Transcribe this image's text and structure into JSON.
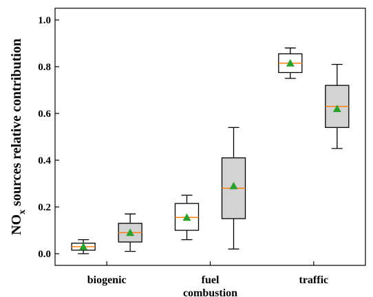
{
  "chart_data": {
    "type": "box",
    "ylabel": {
      "main": "NO",
      "sub": "x",
      "rest": " sources relative contribution"
    },
    "ylim": [
      -0.05,
      1.05
    ],
    "y_ticks": [
      "0.0",
      "0.2",
      "0.4",
      "0.6",
      "0.8",
      "1.0"
    ],
    "categories": [
      {
        "lines": [
          "biogenic"
        ]
      },
      {
        "lines": [
          "fuel",
          "combustion"
        ]
      },
      {
        "lines": [
          "traffic"
        ]
      }
    ],
    "boxes": [
      {
        "group": 0,
        "style": "white",
        "whisker_low": 0.0,
        "q1": 0.015,
        "median": 0.03,
        "q3": 0.045,
        "whisker_high": 0.06,
        "mean": 0.03
      },
      {
        "group": 0,
        "style": "gray",
        "whisker_low": 0.01,
        "q1": 0.05,
        "median": 0.09,
        "q3": 0.13,
        "whisker_high": 0.17,
        "mean": 0.09
      },
      {
        "group": 1,
        "style": "white",
        "whisker_low": 0.06,
        "q1": 0.1,
        "median": 0.155,
        "q3": 0.215,
        "whisker_high": 0.25,
        "mean": 0.155
      },
      {
        "group": 1,
        "style": "gray",
        "whisker_low": 0.02,
        "q1": 0.15,
        "median": 0.28,
        "q3": 0.41,
        "whisker_high": 0.54,
        "mean": 0.29
      },
      {
        "group": 2,
        "style": "white",
        "whisker_low": 0.75,
        "q1": 0.775,
        "median": 0.815,
        "q3": 0.855,
        "whisker_high": 0.88,
        "mean": 0.815
      },
      {
        "group": 2,
        "style": "gray",
        "whisker_low": 0.45,
        "q1": 0.54,
        "median": 0.63,
        "q3": 0.72,
        "whisker_high": 0.81,
        "mean": 0.62
      }
    ],
    "colors": {
      "box_white": "#ffffff",
      "box_gray": "#d3d3d3",
      "median": "#ff7f0e",
      "mean": "#2ca02c",
      "line": "#000000"
    },
    "grid": false,
    "legend": "none"
  }
}
